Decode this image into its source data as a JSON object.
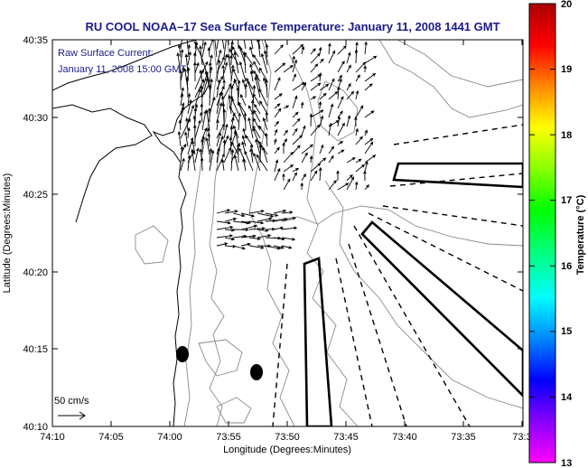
{
  "title": "RU COOL  NOAA–17  Sea Surface Temperature:  January 11, 2008 1441 GMT",
  "legend": {
    "line1": "Raw Surface Current:",
    "line2": "January 11, 2008 15:00 GMT"
  },
  "scale_label": "50 cm/s",
  "axes": {
    "xlabel": "Longitude (Degrees:Minutes)",
    "ylabel": "Latitude (Degrees:Minutes)",
    "xticks": [
      "74:10",
      "74:05",
      "74:00",
      "73:55",
      "73:50",
      "73:45",
      "73:40",
      "73:35",
      "73:3"
    ],
    "yticks": [
      "40:35",
      "40:30",
      "40:25",
      "40:20",
      "40:15",
      "40:10"
    ]
  },
  "colorbar": {
    "label": "Temperature (°C)",
    "min": 13,
    "max": 20,
    "ticks": [
      "20",
      "19",
      "18",
      "17",
      "16",
      "15",
      "14",
      "13"
    ],
    "colors": [
      "#ff00ff",
      "#8800ff",
      "#0000ff",
      "#0088ff",
      "#00ffff",
      "#00ff88",
      "#00ff00",
      "#88ff00",
      "#ffff00",
      "#ff8800",
      "#ff0000",
      "#aa0000"
    ]
  }
}
